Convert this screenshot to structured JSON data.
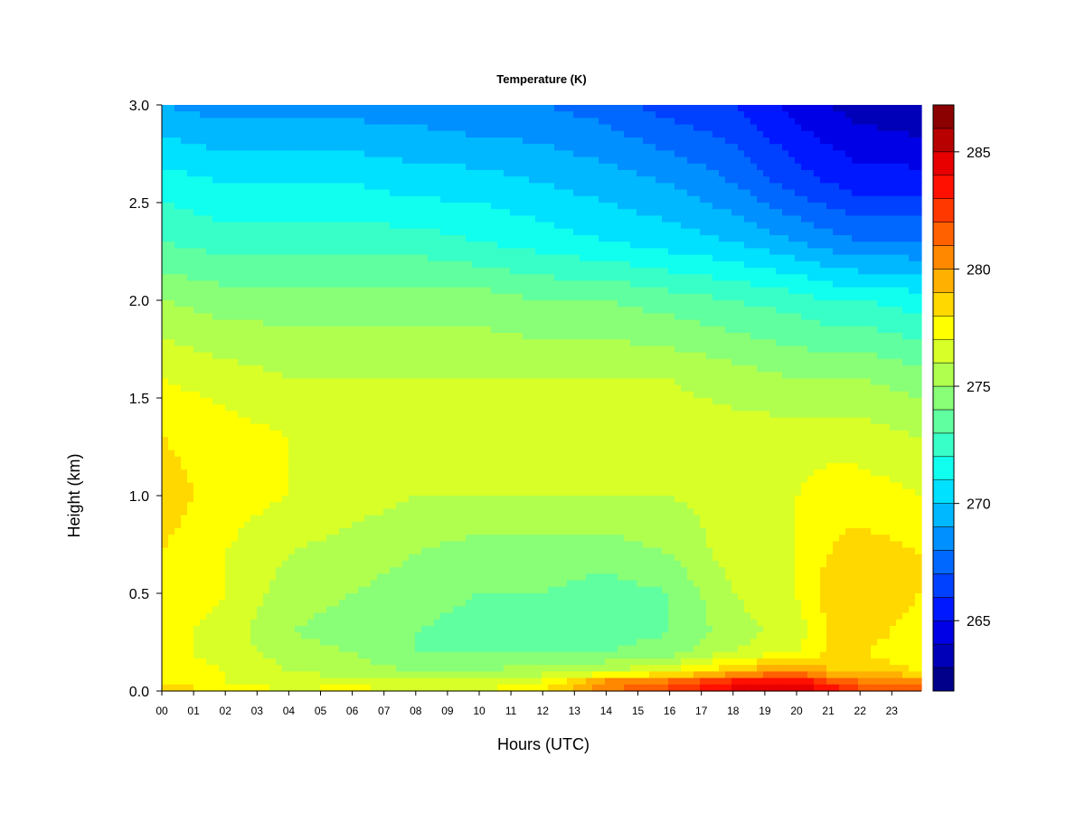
{
  "chart_data": {
    "type": "heatmap",
    "title": "Temperature (K)",
    "xlabel": "Hours (UTC)",
    "ylabel": "Height (km)",
    "x_ticks": [
      "00",
      "01",
      "02",
      "03",
      "04",
      "05",
      "06",
      "07",
      "08",
      "09",
      "10",
      "11",
      "12",
      "13",
      "14",
      "15",
      "16",
      "17",
      "18",
      "19",
      "20",
      "21",
      "22",
      "23"
    ],
    "xlim": [
      0,
      23.9
    ],
    "ylim": [
      0,
      3.0
    ],
    "y_ticks": [
      0.0,
      0.5,
      1.0,
      1.5,
      2.0,
      2.5,
      3.0
    ],
    "y_tick_labels": [
      "0.0",
      "0.5",
      "1.0",
      "1.5",
      "2.0",
      "2.5",
      "3.0"
    ],
    "colorbar": {
      "min": 262,
      "max": 287,
      "levels": 25,
      "ticks": [
        265,
        270,
        275,
        280,
        285
      ],
      "tick_labels": [
        "265",
        "270",
        "275",
        "280",
        "285"
      ],
      "colors": [
        "#00008b",
        "#0000b8",
        "#0000e6",
        "#0018ff",
        "#0040ff",
        "#0068ff",
        "#0090ff",
        "#00b8ff",
        "#00e0ff",
        "#10ffef",
        "#38ffc7",
        "#60ff9f",
        "#88ff77",
        "#b0ff4f",
        "#d8ff27",
        "#ffff00",
        "#ffd800",
        "#ffb000",
        "#ff8800",
        "#ff6000",
        "#ff3800",
        "#ff1000",
        "#e80000",
        "#b80000",
        "#8b0000"
      ]
    },
    "heights_km": [
      0.0,
      0.05,
      0.1,
      0.2,
      0.3,
      0.5,
      0.7,
      1.0,
      1.3,
      1.6,
      2.0,
      2.3,
      2.6,
      3.0
    ],
    "hours": [
      0,
      2,
      4,
      6,
      8,
      10,
      12,
      14,
      16,
      18,
      20,
      21,
      22,
      23.9
    ],
    "values": [
      [
        279.0,
        277.5,
        277.0,
        277.5,
        277.0,
        277.0,
        278.0,
        281.0,
        282.5,
        284.5,
        285.5,
        284.0,
        282.5,
        282.0
      ],
      [
        278.0,
        277.0,
        276.5,
        276.5,
        276.0,
        276.0,
        277.0,
        280.0,
        281.0,
        283.0,
        284.0,
        282.0,
        281.0,
        280.5
      ],
      [
        277.5,
        277.0,
        276.0,
        275.5,
        275.0,
        275.0,
        275.5,
        276.0,
        277.0,
        279.0,
        280.5,
        279.0,
        278.5,
        278.0
      ],
      [
        277.5,
        276.5,
        275.5,
        275.0,
        274.0,
        274.0,
        274.0,
        274.0,
        274.5,
        276.0,
        277.0,
        278.0,
        278.0,
        277.5
      ],
      [
        277.5,
        276.5,
        275.0,
        274.5,
        274.0,
        273.5,
        273.5,
        273.5,
        274.0,
        275.5,
        276.5,
        278.0,
        278.5,
        277.5
      ],
      [
        278.0,
        277.0,
        275.5,
        275.0,
        274.5,
        274.0,
        274.0,
        273.5,
        274.0,
        276.0,
        277.0,
        278.5,
        279.0,
        278.0
      ],
      [
        278.0,
        277.0,
        276.0,
        275.5,
        275.0,
        274.5,
        274.5,
        274.5,
        275.0,
        276.5,
        277.0,
        278.0,
        278.5,
        278.0
      ],
      [
        278.5,
        277.5,
        277.0,
        276.5,
        276.0,
        276.0,
        276.0,
        276.0,
        276.0,
        276.5,
        277.0,
        277.5,
        277.5,
        277.0
      ],
      [
        278.0,
        277.5,
        277.0,
        277.0,
        276.5,
        276.5,
        276.5,
        276.5,
        276.5,
        276.5,
        276.5,
        276.5,
        276.5,
        276.0
      ],
      [
        277.0,
        276.5,
        276.0,
        276.0,
        276.0,
        276.0,
        276.0,
        276.0,
        276.0,
        275.5,
        275.0,
        275.0,
        275.0,
        274.5
      ],
      [
        275.0,
        274.5,
        274.5,
        274.5,
        274.5,
        274.5,
        274.0,
        274.0,
        273.5,
        273.0,
        272.5,
        272.0,
        272.0,
        271.5
      ],
      [
        273.0,
        272.5,
        272.5,
        272.5,
        272.5,
        272.0,
        271.5,
        271.0,
        270.5,
        270.0,
        269.0,
        268.5,
        268.0,
        268.0
      ],
      [
        271.5,
        271.0,
        271.0,
        271.0,
        270.5,
        270.5,
        270.0,
        269.5,
        269.0,
        268.0,
        266.5,
        266.0,
        265.5,
        265.5
      ],
      [
        269.0,
        268.5,
        268.5,
        268.5,
        268.5,
        268.0,
        268.0,
        267.5,
        266.5,
        266.0,
        264.5,
        264.0,
        263.5,
        263.0
      ]
    ]
  }
}
